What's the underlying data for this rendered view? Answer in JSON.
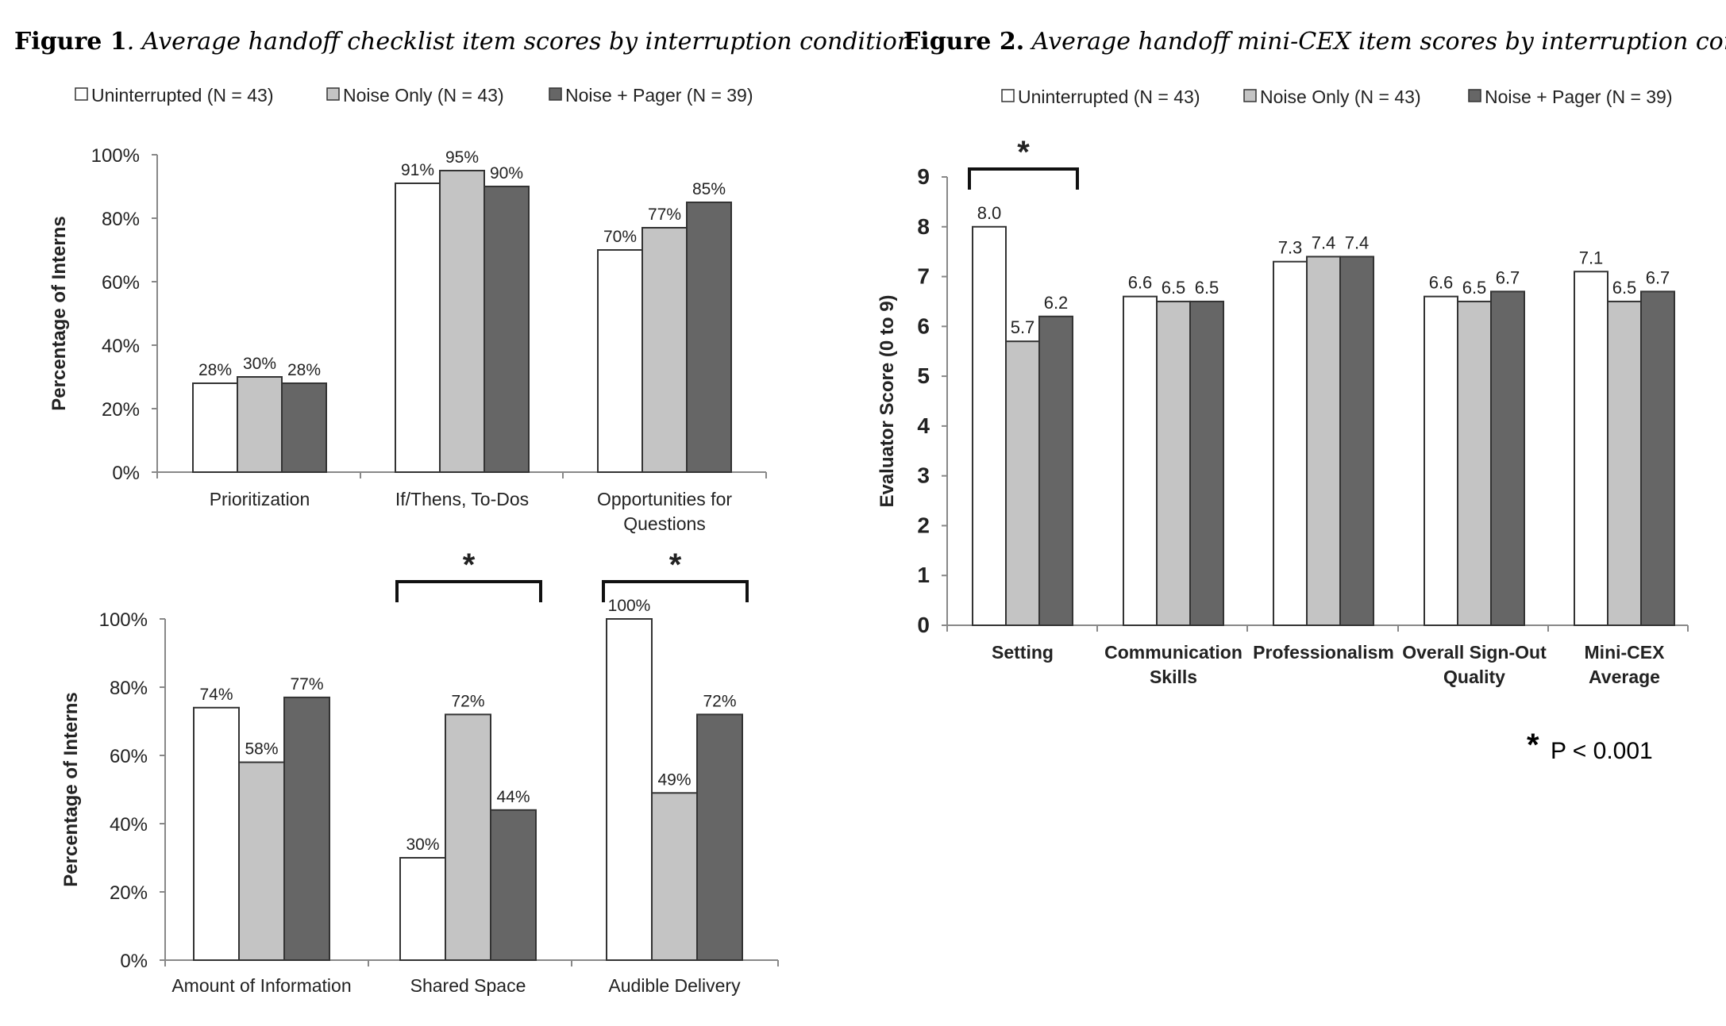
{
  "figure1": {
    "title_bold": "Figure 1",
    "title_italic": ". Average handoff checklist item scores by interruption condition."
  },
  "figure2": {
    "title_bold": "Figure 2.",
    "title_italic": " Average handoff mini-CEX item scores by interruption condition."
  },
  "legend": [
    {
      "label": "Uninterrupted (N = 43)",
      "color": "#ffffff"
    },
    {
      "label": "Noise Only (N = 43)",
      "color": "#c4c4c4"
    },
    {
      "label": "Noise + Pager (N = 39)",
      "color": "#666666"
    }
  ],
  "significance_note": "P < 0.001",
  "significance_mark": "*",
  "chart_data": [
    {
      "id": "fig1-top",
      "type": "bar",
      "ylabel": "Percentage of Interns",
      "ylim": [
        0,
        100
      ],
      "yticks": [
        "0%",
        "20%",
        "40%",
        "60%",
        "80%",
        "100%"
      ],
      "categories": [
        [
          "Prioritization"
        ],
        [
          "If/Thens, To-Dos"
        ],
        [
          "Opportunities for",
          "Questions"
        ]
      ],
      "series": [
        {
          "values": [
            28,
            91,
            70
          ],
          "labels": [
            "28%",
            "91%",
            "70%"
          ]
        },
        {
          "values": [
            30,
            95,
            77
          ],
          "labels": [
            "30%",
            "95%",
            "77%"
          ]
        },
        {
          "values": [
            28,
            90,
            85
          ],
          "labels": [
            "28%",
            "90%",
            "85%"
          ]
        }
      ],
      "significant": []
    },
    {
      "id": "fig1-bottom",
      "type": "bar",
      "ylabel": "Percentage of Interns",
      "ylim": [
        0,
        100
      ],
      "yticks": [
        "0%",
        "20%",
        "40%",
        "60%",
        "80%",
        "100%"
      ],
      "categories": [
        [
          "Amount of Information"
        ],
        [
          "Shared Space"
        ],
        [
          "Audible Delivery"
        ]
      ],
      "series": [
        {
          "values": [
            74,
            30,
            100
          ],
          "labels": [
            "74%",
            "30%",
            "100%"
          ]
        },
        {
          "values": [
            58,
            72,
            49
          ],
          "labels": [
            "58%",
            "72%",
            "49%"
          ]
        },
        {
          "values": [
            77,
            44,
            72
          ],
          "labels": [
            "77%",
            "44%",
            "72%"
          ]
        }
      ],
      "significant": [
        1,
        2
      ]
    },
    {
      "id": "fig2",
      "type": "bar",
      "ylabel": "Evaluator Score (0 to 9)",
      "ylim": [
        0,
        9
      ],
      "yticks": [
        "0",
        "1",
        "2",
        "3",
        "4",
        "5",
        "6",
        "7",
        "8",
        "9"
      ],
      "categories": [
        [
          "Setting"
        ],
        [
          "Communication",
          "Skills"
        ],
        [
          "Professionalism"
        ],
        [
          "Overall Sign-Out",
          "Quality"
        ],
        [
          "Mini-CEX",
          "Average"
        ]
      ],
      "series": [
        {
          "values": [
            8.0,
            6.6,
            7.3,
            6.6,
            7.1
          ],
          "labels": [
            "8.0",
            "6.6",
            "7.3",
            "6.6",
            "7.1"
          ]
        },
        {
          "values": [
            5.7,
            6.5,
            7.4,
            6.5,
            6.5
          ],
          "labels": [
            "5.7",
            "6.5",
            "7.4",
            "6.5",
            "6.5"
          ]
        },
        {
          "values": [
            6.2,
            6.5,
            7.4,
            6.7,
            6.7
          ],
          "labels": [
            "6.2",
            "6.5",
            "7.4",
            "6.7",
            "6.7"
          ]
        }
      ],
      "significant": [
        0
      ]
    }
  ]
}
